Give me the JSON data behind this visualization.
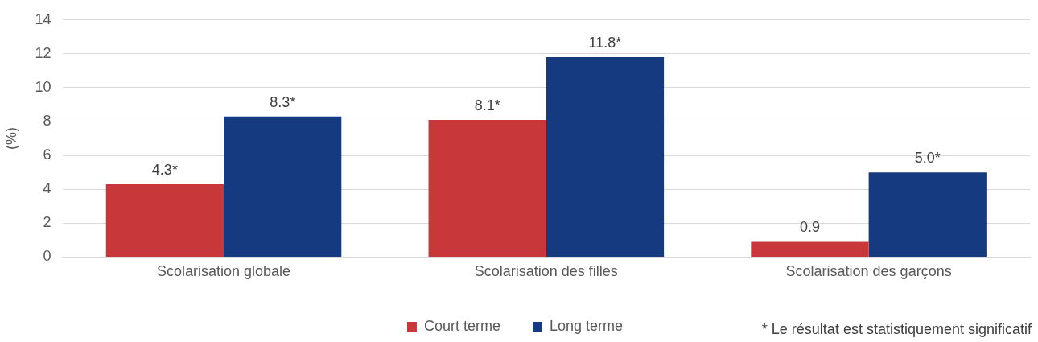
{
  "chart_data": {
    "type": "bar",
    "categories": [
      "Scolarisation globale",
      "Scolarisation des filles",
      "Scolarisation des garçons"
    ],
    "series": [
      {
        "name": "Court terme",
        "color": "#c8383a",
        "values": [
          4.3,
          8.1,
          0.9
        ],
        "value_labels": [
          "4.3*",
          "8.1*",
          "0.9"
        ]
      },
      {
        "name": "Long terme",
        "color": "#163a80",
        "values": [
          8.3,
          11.8,
          5.0
        ],
        "value_labels": [
          "8.3*",
          "11.8*",
          "5.0*"
        ]
      }
    ],
    "ylabel": "(%)",
    "ylim": [
      0,
      14
    ],
    "yticks": [
      0,
      2,
      4,
      6,
      8,
      10,
      12,
      14
    ],
    "grid": "y",
    "legend": "bottom",
    "annotations": [
      "* Le résultat est statistiquement significatif"
    ]
  }
}
